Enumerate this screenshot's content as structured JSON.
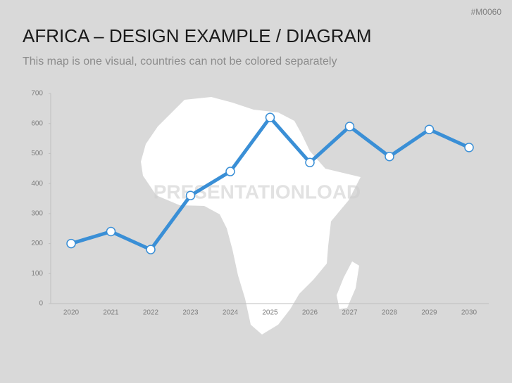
{
  "code": "#M0060",
  "chart_data": {
    "type": "line",
    "title": "AFRICA – DESIGN EXAMPLE / DIAGRAM",
    "subtitle": "This map is one visual, countries can not be colored separately",
    "watermark": "PRESENTATIONLOAD",
    "categories": [
      "2020",
      "2021",
      "2022",
      "2023",
      "2024",
      "2025",
      "2026",
      "2027",
      "2028",
      "2029",
      "2030"
    ],
    "values": [
      200,
      240,
      180,
      360,
      440,
      620,
      470,
      590,
      490,
      580,
      520
    ],
    "color": "#3a8fd6",
    "ylim": [
      0,
      700
    ],
    "yticks": [
      0,
      100,
      200,
      300,
      400,
      500,
      600,
      700
    ],
    "grid": false
  }
}
